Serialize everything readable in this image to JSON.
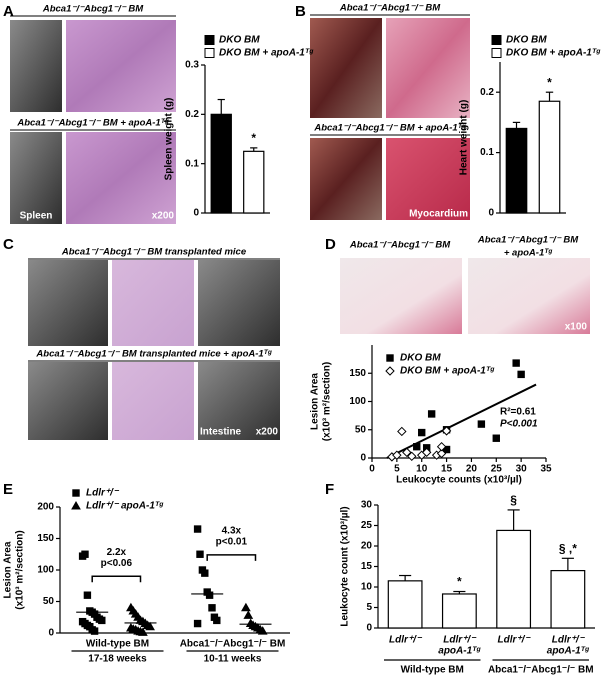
{
  "panel_labels": [
    "A",
    "B",
    "C",
    "D",
    "E",
    "F"
  ],
  "image_titles": [
    "Abca1⁻/⁻Abcg1⁻/⁻ BM",
    "Abca1⁻/⁻Abcg1⁻/⁻ BM + apoA-1ᵀᵍ",
    "Abca1⁻/⁻Abcg1⁻/⁻ BM",
    "Abca1⁻/⁻Abcg1⁻/⁻ BM + apoA-1ᵀᵍ",
    "Abca1⁻/⁻Abcg1⁻/⁻ BM transplanted mice",
    "Abca1⁻/⁻Abcg1⁻/⁻ BM transplanted mice + apoA-1ᵀᵍ",
    "Abca1⁻/⁻Abcg1⁻/⁻ BM",
    "Abca1⁻/⁻Abcg1⁻/⁻ BM",
    "+ apoA-1ᵀᵍ"
  ],
  "image_captions": [
    "Spleen",
    "x200",
    "Myocardium",
    "x200",
    "Intestine",
    "x100"
  ],
  "chart_data": [
    {
      "type": "bar",
      "ylabel": [
        "Spleen weight (g)"
      ],
      "ylim": [
        0,
        0.3
      ],
      "yticks": [
        0,
        0.1,
        0.2,
        0.3
      ],
      "series": [
        {
          "name": "DKO BM",
          "color": "#000000",
          "values": [
            0.2
          ],
          "errors": [
            0.03
          ]
        },
        {
          "name": "DKO BM + apoA-1ᵀᵍ",
          "color": "#ffffff",
          "values": [
            0.125
          ],
          "errors": [
            0.007
          ]
        }
      ],
      "annotations": [
        null,
        "*"
      ]
    },
    {
      "type": "bar",
      "ylabel": [
        "Heart weight (g)"
      ],
      "ylim": [
        0,
        0.25
      ],
      "yticks": [
        0,
        0.1,
        0.2
      ],
      "series": [
        {
          "name": "DKO BM",
          "color": "#000000",
          "values": [
            0.14
          ],
          "errors": [
            0.01
          ]
        },
        {
          "name": "DKO BM + apoA-1ᵀᵍ",
          "color": "#ffffff",
          "values": [
            0.185
          ],
          "errors": [
            0.015
          ]
        }
      ],
      "annotations": [
        null,
        "*"
      ]
    },
    {
      "type": "scatter",
      "ylabel": [
        "Lesion Area",
        "(x10³ m²/section)"
      ],
      "xlabel": "Leukocyte counts (x10³/µl)",
      "xlim": [
        0,
        35
      ],
      "xticks": [
        0,
        5,
        10,
        15,
        20,
        25,
        30,
        35
      ],
      "ylim": [
        0,
        200
      ],
      "yticks": [
        0,
        50,
        100,
        150
      ],
      "series": [
        {
          "name": "DKO BM",
          "color": "#000000",
          "marker": "square",
          "x": [
            9,
            10,
            11,
            12,
            15,
            15,
            22,
            25,
            29,
            30
          ],
          "values": [
            20,
            45,
            18,
            78,
            50,
            15,
            60,
            35,
            168,
            148
          ]
        },
        {
          "name": "DKO BM + apoA-1ᵀᵍ",
          "color": "#ffffff",
          "marker": "diamond",
          "x": [
            4,
            5,
            6,
            7,
            8,
            10,
            11,
            13,
            14,
            14,
            15
          ],
          "values": [
            2,
            5,
            47,
            10,
            3,
            5,
            10,
            5,
            8,
            20,
            48
          ]
        }
      ],
      "trendline": {
        "x": [
          3,
          33
        ],
        "y": [
          0,
          130
        ]
      },
      "annotations": [
        "R²=0.61",
        "P<0.001"
      ]
    },
    {
      "type": "dot",
      "ylabel": [
        "Lesion Area",
        "(x10³ m²/section)"
      ],
      "ylim": [
        0,
        200
      ],
      "yticks": [
        0,
        50,
        100,
        150,
        200
      ],
      "groups": [
        {
          "label": "Wild-type BM",
          "sublabel": "17-18 weeks"
        },
        {
          "label": "Abca1⁻/⁻Abcg1⁻/⁻ BM",
          "sublabel": "10-11 weeks"
        }
      ],
      "series": [
        {
          "name": "Ldlr⁺/⁻",
          "color": "#000000",
          "marker": "square",
          "values": [
            [
              122,
              125,
              60,
              35,
              33,
              30,
              25,
              22,
              20,
              18,
              15,
              12,
              10,
              5,
              3
            ],
            [
              165,
              125,
              100,
              95,
              65,
              60,
              40,
              25,
              20,
              15
            ]
          ],
          "means": [
            33,
            62
          ]
        },
        {
          "name": "Ldlr⁺/⁻ apoA-1ᵀᵍ",
          "color": "#000000",
          "marker": "triangle",
          "values": [
            [
              40,
              35,
              30,
              25,
              20,
              18,
              15,
              12,
              10,
              8,
              6,
              5,
              3,
              2,
              1
            ],
            [
              40,
              28,
              15,
              12,
              10,
              8,
              5,
              3
            ]
          ],
          "means": [
            16,
            14
          ]
        }
      ],
      "annotations": [
        [
          "2.2x",
          "p<0.06"
        ],
        [
          "4.3x",
          "p<0.01"
        ]
      ]
    },
    {
      "type": "bar",
      "ylabel": [
        "Leukocyte count (x10³/µl)"
      ],
      "ylim": [
        0,
        30
      ],
      "yticks": [
        0,
        5,
        10,
        15,
        20,
        25,
        30
      ],
      "categories": [
        [
          "Ldlr⁺/⁻"
        ],
        [
          "Ldlr⁺/⁻",
          "apoA-1ᵀᵍ"
        ],
        [
          "Ldlr⁺/⁻"
        ],
        [
          "Ldlr⁺/⁻",
          "apoA-1ᵀᵍ"
        ]
      ],
      "groups": [
        {
          "label": "Wild-type BM"
        },
        {
          "label": "Abca1⁻/⁻Abcg1⁻/⁻ BM"
        }
      ],
      "series": [
        {
          "color": "#ffffff",
          "values": [
            11.5,
            8.3,
            23.8,
            14
          ],
          "errors": [
            1.3,
            0.6,
            5,
            3
          ]
        }
      ],
      "annotations": [
        null,
        "*",
        "§",
        "§ ,*"
      ]
    }
  ]
}
